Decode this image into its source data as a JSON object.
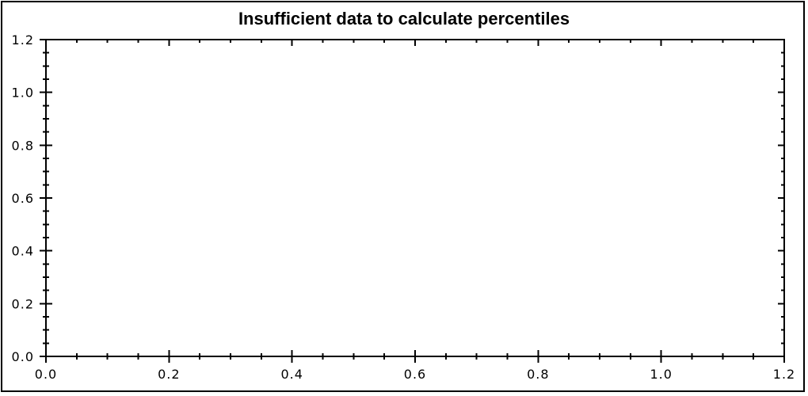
{
  "window": {
    "background": "#ffffff",
    "border_color": "#000000"
  },
  "chart_data": {
    "type": "scatter",
    "title": "Insufficient data to calculate percentiles",
    "series": [],
    "plot_area_empty": true,
    "grid": false,
    "legend": false,
    "axis_color": "#000000",
    "text_color": "#000000",
    "x_axis": {
      "min": 0.0,
      "max": 1.2,
      "major_ticks": [
        0.0,
        0.2,
        0.4,
        0.6,
        0.8,
        1.0,
        1.2
      ],
      "tick_labels": [
        "0.0",
        "0.2",
        "0.4",
        "0.6",
        "0.8",
        "1.0",
        "1.2"
      ],
      "minor_tick_step": 0.05
    },
    "y_axis": {
      "min": 0.0,
      "max": 1.2,
      "major_ticks": [
        0.0,
        0.2,
        0.4,
        0.6,
        0.8,
        1.0,
        1.2
      ],
      "tick_labels": [
        "0.0",
        "0.2",
        "0.4",
        "0.6",
        "0.8",
        "1.0",
        "1.2"
      ],
      "minor_tick_step": 0.05
    }
  }
}
